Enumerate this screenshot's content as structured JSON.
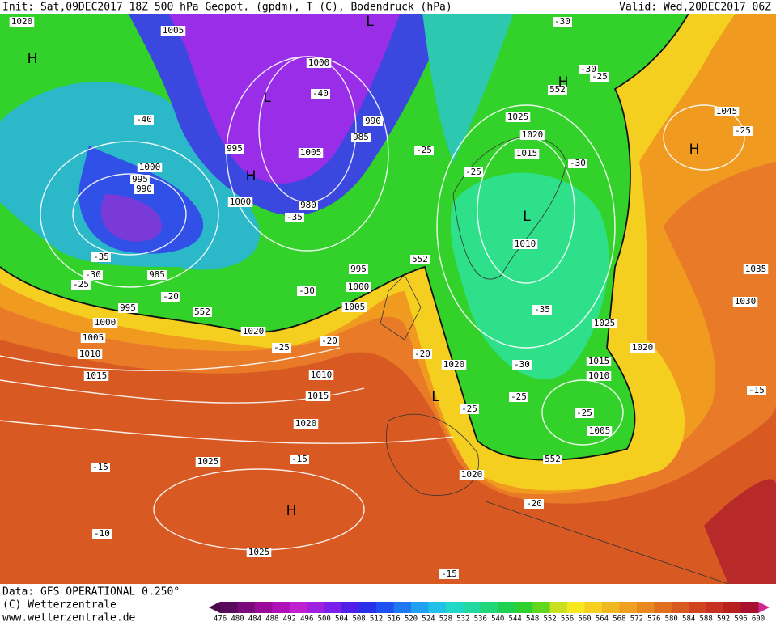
{
  "header": {
    "left": "Init: Sat,09DEC2017 18Z  500 hPa Geopot. (gpdm), T (C), Bodendruck (hPa)",
    "right": "Valid: Wed,20DEC2017 06Z"
  },
  "footer": [
    "Data: GFS OPERATIONAL 0.250°",
    "(C) Wetterzentrale",
    "www.wetterzentrale.de"
  ],
  "colorbar": {
    "labels": [
      "476",
      "480",
      "484",
      "488",
      "492",
      "496",
      "500",
      "504",
      "508",
      "512",
      "516",
      "520",
      "524",
      "528",
      "532",
      "536",
      "540",
      "544",
      "548",
      "552",
      "556",
      "560",
      "564",
      "568",
      "572",
      "576",
      "580",
      "584",
      "588",
      "592",
      "596",
      "600"
    ]
  },
  "map": {
    "centers": [
      "H",
      "L",
      "L",
      "H",
      "H",
      "H",
      "L",
      "L",
      "H"
    ],
    "labels": [
      "1020",
      "1005",
      "1000",
      "-40",
      "990",
      "985",
      "1005",
      "995",
      "1000",
      "995",
      "990",
      "1000",
      "980",
      "-35",
      "-40",
      "-35",
      "-30",
      "-25",
      "985",
      "995",
      "-20",
      "552",
      "1000",
      "1005",
      "1010",
      "1015",
      "1020",
      "-25",
      "-20",
      "1010",
      "1015",
      "1020",
      "995",
      "1000",
      "1005",
      "-30",
      "552",
      "-25",
      "-25",
      "1025",
      "1020",
      "1015",
      "-30",
      "1010",
      "-35",
      "552",
      "-30",
      "-30",
      "-25",
      "1045",
      "-25",
      "1035",
      "1030",
      "1025",
      "1020",
      "1015",
      "1010",
      "-30",
      "-20",
      "1020",
      "-25",
      "-25",
      "-25",
      "1005",
      "552",
      "1020",
      "-20",
      "-15",
      "-15",
      "1025",
      "-15",
      "-10",
      "1025",
      "-15"
    ]
  }
}
